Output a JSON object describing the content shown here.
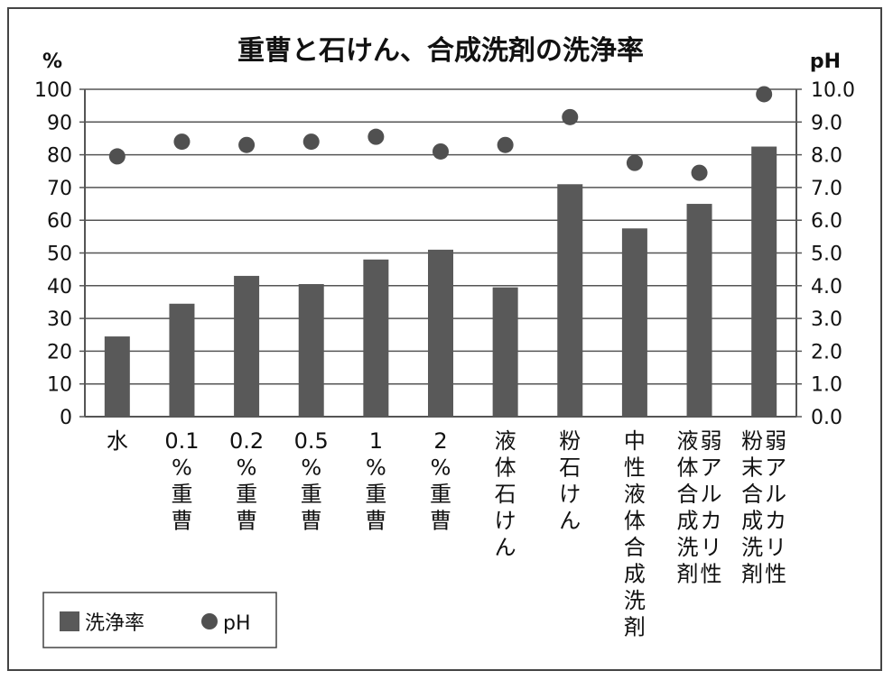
{
  "chart_data": {
    "type": "bar",
    "title": "重曹と石けん、合成洗剤の洗浄率",
    "y_left_unit": "%",
    "y_right_unit": "pH",
    "ylim": [
      0,
      100
    ],
    "y2lim": [
      0,
      10
    ],
    "y_ticks": [
      "0",
      "10",
      "20",
      "30",
      "40",
      "50",
      "60",
      "70",
      "80",
      "90",
      "100"
    ],
    "y2_ticks": [
      "0.0",
      "1.0",
      "2.0",
      "3.0",
      "4.0",
      "5.0",
      "6.0",
      "7.0",
      "8.0",
      "9.0",
      "10.0"
    ],
    "grid": true,
    "legend_position": "bottom-left",
    "categories": [
      {
        "lines": [
          "水"
        ]
      },
      {
        "lines": [
          "0.1",
          "%",
          "重",
          "曹"
        ]
      },
      {
        "lines": [
          "0.2",
          "%",
          "重",
          "曹"
        ]
      },
      {
        "lines": [
          "0.5",
          "%",
          "重",
          "曹"
        ]
      },
      {
        "lines": [
          "1",
          "%",
          "重",
          "曹"
        ]
      },
      {
        "lines": [
          "2",
          "%",
          "重",
          "曹"
        ]
      },
      {
        "lines": [
          "液",
          "体",
          "石",
          "け",
          "ん"
        ]
      },
      {
        "lines": [
          "粉",
          "石",
          "け",
          "ん"
        ]
      },
      {
        "lines": [
          "中",
          "性",
          "液",
          "体",
          "合",
          "成",
          "洗",
          "剤"
        ]
      },
      {
        "lines": [
          "液",
          "体",
          "合",
          "成",
          "洗",
          "剤"
        ],
        "lines2": [
          "弱",
          "ア",
          "ル",
          "カ",
          "リ",
          "性"
        ]
      },
      {
        "lines": [
          "粉",
          "末",
          "合",
          "成",
          "洗",
          "剤"
        ],
        "lines2": [
          "弱",
          "ア",
          "ル",
          "カ",
          "リ",
          "性"
        ]
      }
    ],
    "series": [
      {
        "name": "洗浄率",
        "type": "bar",
        "axis": "left",
        "color": "#595959",
        "values": [
          24.5,
          34.5,
          43,
          40.5,
          48,
          51,
          39.5,
          71,
          57.5,
          65,
          82.5
        ]
      },
      {
        "name": "pH",
        "type": "scatter",
        "axis": "right",
        "color": "#505050",
        "values": [
          7.95,
          8.4,
          8.3,
          8.4,
          8.55,
          8.1,
          8.3,
          9.15,
          7.75,
          7.45,
          9.85
        ]
      }
    ]
  }
}
